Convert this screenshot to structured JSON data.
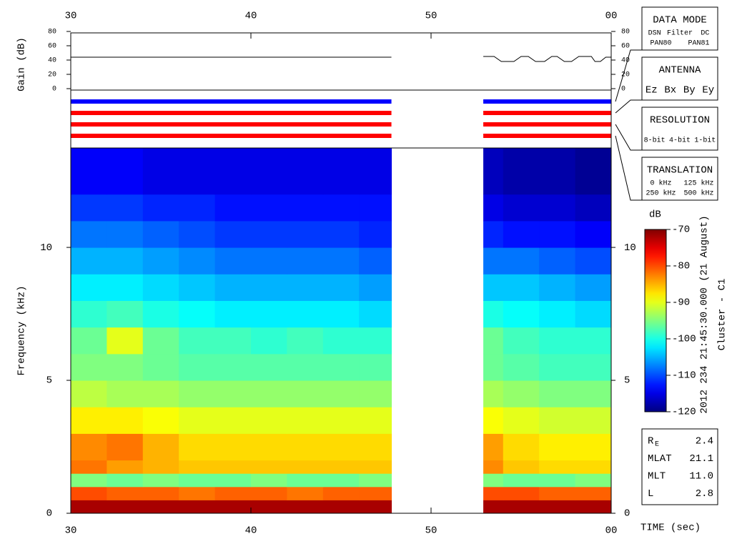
{
  "chart_data": {
    "type": "spectrogram",
    "x_label": "TIME (sec)",
    "xlim": [
      30,
      60
    ],
    "xticks": [
      30,
      40,
      50,
      {
        "value": 60,
        "label": "00"
      }
    ],
    "gain": {
      "y_label": "Gain (dB)",
      "ylim": [
        0,
        80
      ],
      "yticks": [
        0,
        20,
        40,
        60,
        80
      ],
      "color": "#000000",
      "x": [
        30,
        47.8,
        50,
        52.9,
        53.5,
        53.9,
        54.6,
        55.0,
        55.4,
        55.8,
        56.3,
        56.7,
        57.0,
        57.4,
        57.8,
        58.2,
        58.9,
        59.1,
        59.4,
        59.7,
        60
      ],
      "values": [
        44,
        44,
        null,
        45,
        45,
        38,
        38,
        45,
        45,
        38,
        38,
        45,
        45,
        38,
        38,
        45,
        45,
        38,
        38,
        44,
        44
      ]
    },
    "status_bars": [
      {
        "color": "#0000ff",
        "segments": [
          [
            30,
            47.8
          ],
          [
            52.9,
            60
          ]
        ]
      },
      {
        "color": "#ff0000",
        "segments": [
          [
            30,
            47.8
          ],
          [
            52.9,
            60
          ]
        ]
      },
      {
        "color": "#ff0000",
        "segments": [
          [
            30,
            47.8
          ],
          [
            52.9,
            60
          ]
        ]
      },
      {
        "color": "#ff0000",
        "segments": [
          [
            30,
            47.8
          ],
          [
            52.9,
            60
          ]
        ]
      }
    ],
    "spectrogram": {
      "y_label": "Frequency (kHz)",
      "ylim": [
        0,
        13.74
      ],
      "yticks": [
        0,
        5,
        10
      ],
      "time_bins": [
        30,
        32,
        34,
        36,
        38,
        40,
        42,
        44,
        46,
        47.8,
        52.9,
        54,
        56,
        58,
        60
      ],
      "freq_bins": [
        0,
        0.5,
        1,
        1.5,
        2,
        3,
        4,
        5,
        6,
        7,
        8,
        9,
        10,
        11,
        12,
        13.74
      ],
      "z": [
        [
          -72,
          -72,
          -72,
          -72,
          -72,
          -72,
          -72,
          -72,
          -72,
          null,
          -72,
          -72,
          -72,
          -72
        ],
        [
          -80,
          -81,
          -81,
          -82,
          -81,
          -81,
          -82,
          -81,
          -81,
          null,
          -80,
          -80,
          -81,
          -81
        ],
        [
          -95,
          -96,
          -95,
          -96,
          -96,
          -95,
          -96,
          -96,
          -95,
          null,
          -95,
          -96,
          -96,
          -95
        ],
        [
          -82,
          -84,
          -85,
          -86,
          -86,
          -86,
          -86,
          -86,
          -86,
          null,
          -83,
          -86,
          -87,
          -87
        ],
        [
          -83,
          -82,
          -85,
          -87,
          -87,
          -87,
          -87,
          -87,
          -87,
          null,
          -84,
          -87,
          -88,
          -88
        ],
        [
          -88,
          -88,
          -89,
          -90,
          -90,
          -90,
          -90,
          -90,
          -90,
          null,
          -89,
          -90,
          -91,
          -91
        ],
        [
          -92,
          -93,
          -93,
          -94,
          -94,
          -94,
          -94,
          -94,
          -94,
          null,
          -93,
          -94,
          -95,
          -95
        ],
        [
          -95,
          -95,
          -96,
          -97,
          -97,
          -97,
          -97,
          -97,
          -97,
          null,
          -96,
          -97,
          -98,
          -98
        ],
        [
          -96,
          -90,
          -96,
          -98,
          -98,
          -99,
          -98,
          -99,
          -99,
          null,
          -96,
          -98,
          -99,
          -99
        ],
        [
          -99,
          -98,
          -100,
          -101,
          -102,
          -102,
          -102,
          -102,
          -103,
          null,
          -100,
          -101,
          -102,
          -103
        ],
        [
          -102,
          -102,
          -103,
          -104,
          -105,
          -105,
          -105,
          -105,
          -106,
          null,
          -104,
          -104,
          -105,
          -106
        ],
        [
          -105,
          -105,
          -106,
          -107,
          -108,
          -108,
          -108,
          -108,
          -109,
          null,
          -108,
          -108,
          -109,
          -110
        ],
        [
          -108,
          -108,
          -109,
          -110,
          -111,
          -111,
          -111,
          -111,
          -112,
          null,
          -112,
          -113,
          -113,
          -114
        ],
        [
          -111,
          -111,
          -112,
          -112,
          -113,
          -113,
          -113,
          -113,
          -113,
          null,
          -115,
          -116,
          -116,
          -117
        ],
        [
          -114,
          -114,
          -115,
          -115,
          -115,
          -115,
          -115,
          -115,
          -115,
          null,
          -117,
          -118,
          -118,
          -119
        ]
      ]
    },
    "colorbar": {
      "title": "dB",
      "zlim": [
        -120,
        -70
      ],
      "ticks": [
        -70,
        -80,
        -90,
        -100,
        -110,
        -120
      ]
    },
    "side_text": [
      "2012 234 21:45:30.000 (21 August)",
      "Cluster - C1"
    ]
  },
  "legend_boxes": [
    {
      "title": "DATA MODE",
      "rows": [
        [
          {
            "text": "DSN",
            "color": "#ff0000"
          },
          {
            "text": "Filter",
            "color": "#00cc00"
          },
          {
            "text": "DC",
            "color": "#0000ff"
          }
        ],
        [
          {
            "text": "PAN80",
            "color": "#000000"
          },
          {
            "text": "PAN81",
            "color": "#00cccc"
          }
        ]
      ]
    },
    {
      "title": "ANTENNA",
      "rows": [
        [
          {
            "text": "Ez",
            "color": "#ff0000"
          },
          {
            "text": "Bx",
            "color": "#00cc00"
          },
          {
            "text": "By",
            "color": "#0000ff"
          },
          {
            "text": "Ey",
            "color": "#000000"
          }
        ]
      ]
    },
    {
      "title": "RESOLUTION",
      "rows": [
        [
          {
            "text": "8-bit",
            "color": "#ff0000"
          },
          {
            "text": "4-bit",
            "color": "#00cc00"
          },
          {
            "text": "1-bit",
            "color": "#0000ff"
          }
        ]
      ]
    },
    {
      "title": "TRANSLATION",
      "rows": [
        [
          {
            "text": "0 kHz",
            "color": "#ff0000"
          },
          {
            "text": "125 kHz",
            "color": "#00cc00"
          }
        ],
        [
          {
            "text": "250 kHz",
            "color": "#0000ff"
          },
          {
            "text": "500 kHz",
            "color": "#000000"
          }
        ]
      ]
    }
  ],
  "info": [
    {
      "label": "R",
      "sub": "E",
      "value": "2.4"
    },
    {
      "label": "MLAT",
      "value": "21.1"
    },
    {
      "label": "MLT",
      "value": "11.0"
    },
    {
      "label": "L",
      "value": "2.8"
    }
  ]
}
